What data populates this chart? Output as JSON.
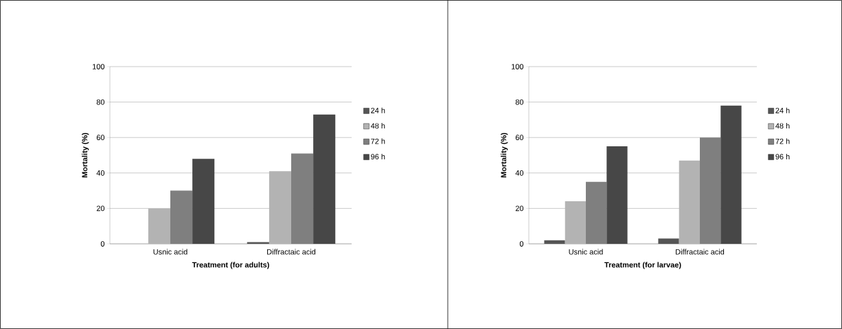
{
  "chart_data": [
    {
      "type": "bar",
      "xlabel": "Treatment (for adults)",
      "ylabel": "Mortality (%)",
      "categories": [
        "Usnic acid",
        "Diffractaic acid"
      ],
      "series": [
        {
          "name": "24 h",
          "color": "#555555",
          "values": [
            0,
            1
          ]
        },
        {
          "name": "48 h",
          "color": "#b3b3b3",
          "values": [
            20,
            41
          ]
        },
        {
          "name": "72 h",
          "color": "#7f7f7f",
          "values": [
            30,
            51
          ]
        },
        {
          "name": "96 h",
          "color": "#474747",
          "values": [
            48,
            73
          ]
        }
      ],
      "ylim": [
        0,
        100
      ],
      "yticks": [
        0,
        20,
        40,
        60,
        80,
        100
      ],
      "grid": "y",
      "legend": "right"
    },
    {
      "type": "bar",
      "xlabel": "Treatment (for larvae)",
      "ylabel": "Mortality (%)",
      "categories": [
        "Usnic acid",
        "Diffractaic acid"
      ],
      "series": [
        {
          "name": "24 h",
          "color": "#555555",
          "values": [
            2,
            3
          ]
        },
        {
          "name": "48 h",
          "color": "#b3b3b3",
          "values": [
            24,
            47
          ]
        },
        {
          "name": "72 h",
          "color": "#7f7f7f",
          "values": [
            35,
            60
          ]
        },
        {
          "name": "96 h",
          "color": "#474747",
          "values": [
            55,
            78
          ]
        }
      ],
      "ylim": [
        0,
        100
      ],
      "yticks": [
        0,
        20,
        40,
        60,
        80,
        100
      ],
      "grid": "y",
      "legend": "right"
    }
  ]
}
